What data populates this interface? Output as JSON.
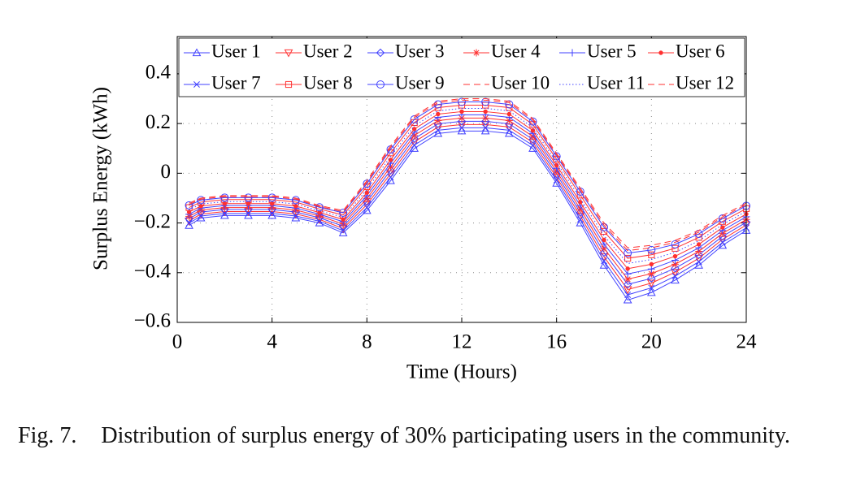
{
  "chart_data": {
    "type": "line",
    "xlabel": "Time (Hours)",
    "ylabel": "Surplus Energy (kWh)",
    "figure_label": "Fig. 7.",
    "caption": "Distribution of surplus energy of 30% participating users in the community.",
    "xlim": [
      0,
      24
    ],
    "ylim": [
      -0.6,
      0.55
    ],
    "xticks": [
      0,
      4,
      8,
      12,
      16,
      20,
      24
    ],
    "yticks": [
      {
        "value": -0.6,
        "label": "−0.6"
      },
      {
        "value": -0.4,
        "label": "−0.4"
      },
      {
        "value": -0.2,
        "label": "−0.2"
      },
      0,
      0.2,
      0.4
    ],
    "grid": true,
    "legend": "top",
    "x": [
      0.5,
      1,
      2,
      3,
      4,
      5,
      6,
      7,
      8,
      9,
      10,
      11,
      12,
      13,
      14,
      15,
      16,
      17,
      18,
      19,
      20,
      21,
      22,
      23,
      24
    ],
    "series": [
      {
        "name": "User 1",
        "color": "#4040ff",
        "marker": "triangle-up",
        "dash": "solid",
        "values": [
          -0.21,
          -0.18,
          -0.17,
          -0.17,
          -0.17,
          -0.18,
          -0.2,
          -0.24,
          -0.15,
          -0.03,
          0.1,
          0.16,
          0.17,
          0.17,
          0.16,
          0.1,
          -0.04,
          -0.2,
          -0.37,
          -0.51,
          -0.48,
          -0.43,
          -0.37,
          -0.29,
          -0.23
        ]
      },
      {
        "name": "User 2",
        "color": "#ff3030",
        "marker": "triangle-down",
        "dash": "solid",
        "values": [
          -0.192,
          -0.164,
          -0.154,
          -0.154,
          -0.154,
          -0.164,
          -0.186,
          -0.222,
          -0.126,
          -0.002,
          0.126,
          0.186,
          0.196,
          0.196,
          0.186,
          0.124,
          -0.016,
          -0.172,
          -0.336,
          -0.468,
          -0.442,
          -0.398,
          -0.342,
          -0.266,
          -0.208
        ]
      },
      {
        "name": "User 3",
        "color": "#4040ff",
        "marker": "diamond",
        "dash": "solid",
        "values": [
          -0.183,
          -0.156,
          -0.146,
          -0.146,
          -0.146,
          -0.156,
          -0.179,
          -0.213,
          -0.114,
          0.012,
          0.139,
          0.199,
          0.209,
          0.209,
          0.199,
          0.136,
          -0.004,
          -0.158,
          -0.319,
          -0.447,
          -0.423,
          -0.382,
          -0.328,
          -0.254,
          -0.197
        ]
      },
      {
        "name": "User 4",
        "color": "#ff3030",
        "marker": "asterisk",
        "dash": "solid",
        "values": [
          -0.174,
          -0.148,
          -0.138,
          -0.138,
          -0.138,
          -0.148,
          -0.172,
          -0.204,
          -0.102,
          0.026,
          0.152,
          0.212,
          0.222,
          0.222,
          0.212,
          0.148,
          0.008,
          -0.144,
          -0.302,
          -0.426,
          -0.404,
          -0.366,
          -0.314,
          -0.242,
          -0.186
        ]
      },
      {
        "name": "User 5",
        "color": "#4040ff",
        "marker": "plus",
        "dash": "solid",
        "values": [
          -0.165,
          -0.14,
          -0.13,
          -0.13,
          -0.13,
          -0.14,
          -0.165,
          -0.195,
          -0.09,
          0.04,
          0.165,
          0.225,
          0.235,
          0.235,
          0.225,
          0.16,
          0.02,
          -0.13,
          -0.285,
          -0.405,
          -0.385,
          -0.35,
          -0.3,
          -0.23,
          -0.175
        ]
      },
      {
        "name": "User 6",
        "color": "#ff3030",
        "marker": "dot",
        "dash": "solid",
        "values": [
          -0.156,
          -0.132,
          -0.122,
          -0.122,
          -0.122,
          -0.132,
          -0.158,
          -0.186,
          -0.078,
          0.054,
          0.178,
          0.238,
          0.248,
          0.248,
          0.238,
          0.172,
          0.032,
          -0.116,
          -0.268,
          -0.384,
          -0.366,
          -0.334,
          -0.286,
          -0.218,
          -0.164
        ]
      },
      {
        "name": "User 7",
        "color": "#4040ff",
        "marker": "x",
        "dash": "solid",
        "values": [
          -0.201,
          -0.172,
          -0.162,
          -0.162,
          -0.162,
          -0.172,
          -0.193,
          -0.231,
          -0.138,
          -0.016,
          0.113,
          0.173,
          0.183,
          0.183,
          0.173,
          0.112,
          -0.028,
          -0.186,
          -0.353,
          -0.489,
          -0.461,
          -0.414,
          -0.356,
          -0.278,
          -0.219
        ]
      },
      {
        "name": "User 8",
        "color": "#ff3030",
        "marker": "square",
        "dash": "solid",
        "values": [
          -0.138,
          -0.116,
          -0.106,
          -0.106,
          -0.106,
          -0.116,
          -0.144,
          -0.168,
          -0.054,
          0.082,
          0.204,
          0.264,
          0.274,
          0.274,
          0.264,
          0.196,
          0.056,
          -0.088,
          -0.234,
          -0.342,
          -0.328,
          -0.302,
          -0.258,
          -0.194,
          -0.142
        ]
      },
      {
        "name": "User 9",
        "color": "#4040ff",
        "marker": "circle",
        "dash": "solid",
        "values": [
          -0.129,
          -0.108,
          -0.098,
          -0.098,
          -0.098,
          -0.108,
          -0.137,
          -0.159,
          -0.042,
          0.096,
          0.217,
          0.277,
          0.287,
          0.287,
          0.277,
          0.208,
          0.068,
          -0.074,
          -0.217,
          -0.321,
          -0.309,
          -0.286,
          -0.244,
          -0.182,
          -0.131
        ]
      },
      {
        "name": "User 10",
        "color": "#ff3030",
        "marker": "none",
        "dash": "dashed",
        "values": [
          -0.12,
          -0.1,
          -0.09,
          -0.09,
          -0.09,
          -0.1,
          -0.13,
          -0.15,
          -0.03,
          0.11,
          0.23,
          0.29,
          0.3,
          0.3,
          0.29,
          0.22,
          0.08,
          -0.06,
          -0.2,
          -0.3,
          -0.29,
          -0.27,
          -0.23,
          -0.17,
          -0.12
        ]
      },
      {
        "name": "User 11",
        "color": "#4040ff",
        "marker": "none",
        "dash": "dotted",
        "values": [
          -0.147,
          -0.124,
          -0.114,
          -0.114,
          -0.114,
          -0.124,
          -0.151,
          -0.177,
          -0.066,
          0.068,
          0.191,
          0.251,
          0.261,
          0.261,
          0.251,
          0.184,
          0.044,
          -0.102,
          -0.251,
          -0.363,
          -0.347,
          -0.318,
          -0.272,
          -0.206,
          -0.153
        ]
      },
      {
        "name": "User 12",
        "color": "#ff3030",
        "marker": "none",
        "dash": "dashed",
        "values": [
          -0.125,
          -0.104,
          -0.094,
          -0.094,
          -0.094,
          -0.104,
          -0.134,
          -0.155,
          -0.036,
          0.103,
          0.224,
          0.284,
          0.294,
          0.294,
          0.284,
          0.214,
          0.074,
          -0.067,
          -0.209,
          -0.311,
          -0.3,
          -0.278,
          -0.237,
          -0.176,
          -0.126
        ]
      }
    ]
  }
}
